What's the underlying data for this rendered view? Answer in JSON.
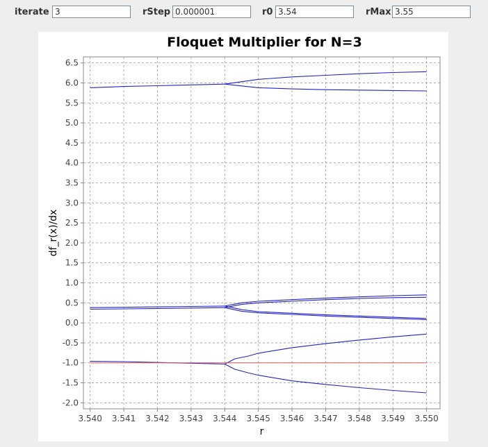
{
  "controls": {
    "iterate": {
      "label": "iterate",
      "value": "3"
    },
    "rstep": {
      "label": "rStep",
      "value": "0.000001"
    },
    "r0": {
      "label": "r0",
      "value": "3.54"
    },
    "rmax": {
      "label": "rMax",
      "value": "3.55"
    }
  },
  "colors": {
    "series": "#2222cc",
    "reference": "#e05555",
    "grid": "#999999",
    "background": "#eeeeee"
  },
  "chart_data": {
    "type": "line",
    "title": "Floquet Multiplier for N=3",
    "xlabel": "r",
    "ylabel": "df_r(x)/dx",
    "xlim": [
      3.5398,
      3.5504
    ],
    "ylim": [
      -2.15,
      6.65
    ],
    "grid": true,
    "legend": "none",
    "xticks": [
      "3.540",
      "3.541",
      "3.542",
      "3.543",
      "3.544",
      "3.545",
      "3.546",
      "3.547",
      "3.548",
      "3.549",
      "3.550"
    ],
    "yticks": [
      "-2.0",
      "-1.5",
      "-1.0",
      "-0.5",
      "0.0",
      "0.5",
      "1.0",
      "1.5",
      "2.0",
      "2.5",
      "3.0",
      "3.5",
      "4.0",
      "4.5",
      "5.0",
      "5.5",
      "6.0",
      "6.5"
    ],
    "series": [
      {
        "x": [
          3.54,
          3.541,
          3.542,
          3.543,
          3.544
        ],
        "y": [
          5.88,
          5.91,
          5.93,
          5.95,
          5.97
        ]
      },
      {
        "x": [
          3.544,
          3.545,
          3.546,
          3.547,
          3.548,
          3.549,
          3.55
        ],
        "y": [
          5.97,
          6.09,
          6.15,
          6.19,
          6.23,
          6.26,
          6.28
        ]
      },
      {
        "x": [
          3.544,
          3.545,
          3.546,
          3.547,
          3.548,
          3.549,
          3.55
        ],
        "y": [
          5.97,
          5.88,
          5.85,
          5.83,
          5.82,
          5.81,
          5.8
        ]
      },
      {
        "x": [
          3.54,
          3.541,
          3.542,
          3.543,
          3.544
        ],
        "y": [
          0.38,
          0.39,
          0.4,
          0.41,
          0.42
        ]
      },
      {
        "x": [
          3.54,
          3.541,
          3.542,
          3.543,
          3.544
        ],
        "y": [
          0.34,
          0.35,
          0.36,
          0.37,
          0.38
        ]
      },
      {
        "x": [
          3.544,
          3.5445,
          3.545,
          3.546,
          3.547,
          3.548,
          3.549,
          3.55
        ],
        "y": [
          0.42,
          0.5,
          0.54,
          0.58,
          0.62,
          0.65,
          0.68,
          0.7
        ]
      },
      {
        "x": [
          3.544,
          3.5445,
          3.545,
          3.546,
          3.547,
          3.548,
          3.549,
          3.55
        ],
        "y": [
          0.38,
          0.46,
          0.5,
          0.54,
          0.58,
          0.61,
          0.63,
          0.64
        ]
      },
      {
        "x": [
          3.544,
          3.5445,
          3.545,
          3.546,
          3.547,
          3.548,
          3.549,
          3.55
        ],
        "y": [
          0.42,
          0.33,
          0.28,
          0.24,
          0.2,
          0.17,
          0.14,
          0.11
        ]
      },
      {
        "x": [
          3.544,
          3.5445,
          3.545,
          3.546,
          3.547,
          3.548,
          3.549,
          3.55
        ],
        "y": [
          0.38,
          0.29,
          0.25,
          0.21,
          0.17,
          0.14,
          0.11,
          0.08
        ]
      },
      {
        "x": [
          3.54,
          3.541,
          3.542,
          3.543,
          3.544
        ],
        "y": [
          -0.96,
          -0.97,
          -0.99,
          -1.01,
          -1.03
        ]
      },
      {
        "x": [
          3.544,
          3.5443,
          3.5447,
          3.545,
          3.546,
          3.547,
          3.548,
          3.549,
          3.55
        ],
        "y": [
          -1.03,
          -0.9,
          -0.83,
          -0.76,
          -0.62,
          -0.52,
          -0.43,
          -0.35,
          -0.28
        ]
      },
      {
        "x": [
          3.544,
          3.5443,
          3.5447,
          3.545,
          3.546,
          3.547,
          3.548,
          3.549,
          3.55
        ],
        "y": [
          -1.03,
          -1.16,
          -1.25,
          -1.31,
          -1.45,
          -1.54,
          -1.62,
          -1.69,
          -1.75
        ]
      },
      {
        "x": [
          3.54,
          3.55
        ],
        "y": [
          -1.0,
          -1.0
        ],
        "style": "reference"
      }
    ]
  }
}
